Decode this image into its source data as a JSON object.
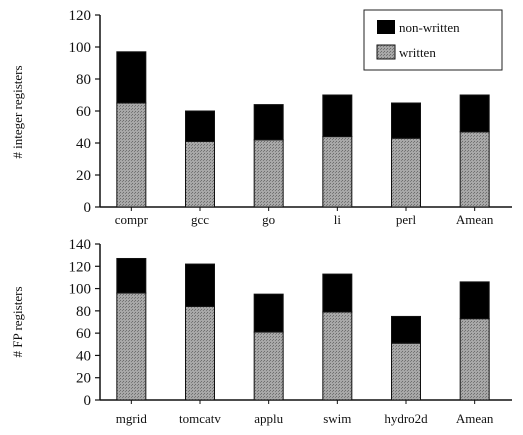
{
  "chart_data": [
    {
      "type": "bar",
      "stacked": true,
      "categories": [
        "compr",
        "gcc",
        "go",
        "li",
        "perl",
        "Amean"
      ],
      "ylabel": "# integer registers",
      "ylim": [
        0,
        120
      ],
      "yticks": [
        0,
        20,
        40,
        60,
        80,
        100,
        120
      ],
      "grid": false,
      "legend": "top-right",
      "series": [
        {
          "name": "written",
          "values": [
            65,
            41,
            42,
            44,
            43,
            47
          ],
          "color": "#9a9a9a"
        },
        {
          "name": "non-written",
          "values": [
            32,
            19,
            22,
            26,
            22,
            23
          ],
          "color": "#000000"
        }
      ]
    },
    {
      "type": "bar",
      "stacked": true,
      "categories": [
        "mgrid",
        "tomcatv",
        "applu",
        "swim",
        "hydro2d",
        "Amean"
      ],
      "ylabel": "# FP registers",
      "ylim": [
        0,
        140
      ],
      "yticks": [
        0,
        20,
        40,
        60,
        80,
        100,
        120,
        140
      ],
      "grid": false,
      "series": [
        {
          "name": "written",
          "values": [
            96,
            84,
            61,
            79,
            51,
            73
          ],
          "color": "#9a9a9a"
        },
        {
          "name": "non-written",
          "values": [
            31,
            38,
            34,
            34,
            24,
            33
          ],
          "color": "#000000"
        }
      ]
    }
  ]
}
